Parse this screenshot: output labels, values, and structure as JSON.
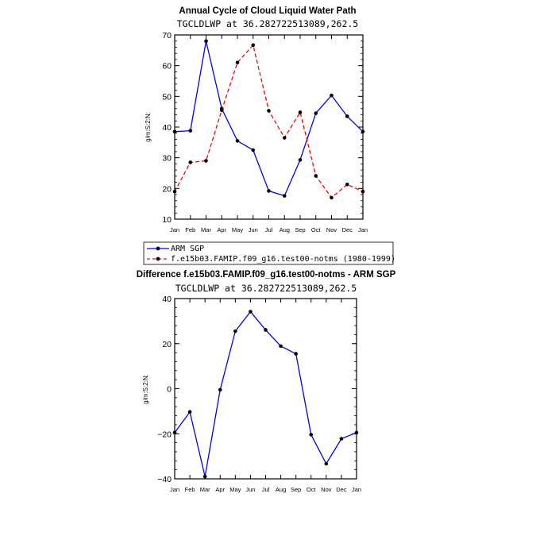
{
  "chart_data": [
    {
      "type": "line",
      "title": "Annual Cycle of Cloud Liquid Water Path",
      "subtitle": "TGCLDLWP at 36.282722513089,262.5",
      "ylabel": "g/m:S:2:N:",
      "xlabel": "",
      "categories": [
        "Jan",
        "Feb",
        "Mar",
        "Apr",
        "May",
        "Jun",
        "Jul",
        "Aug",
        "Sep",
        "Oct",
        "Nov",
        "Dec",
        "Jan"
      ],
      "ylim": [
        10,
        70
      ],
      "yticks": [
        10,
        20,
        30,
        40,
        50,
        60,
        70
      ],
      "grid": false,
      "series": [
        {
          "name": "ARM SGP",
          "color": "#0000ff",
          "dash": "solid",
          "values": [
            38.5,
            38.8,
            68,
            46,
            35.5,
            32.5,
            19.2,
            17.6,
            29.3,
            44.5,
            50.3,
            43.5,
            38.5
          ]
        },
        {
          "name": "f.e15b03.FAMIP.f09_g16.test00-notms (1980-1999)",
          "color": "#ff0000",
          "dash": "dashed",
          "values": [
            19,
            28.5,
            29,
            45.5,
            61,
            66.7,
            45.3,
            36.5,
            44.8,
            24.1,
            17,
            21.3,
            19
          ]
        }
      ],
      "legend_placement": "bottom-left"
    },
    {
      "type": "line",
      "title": "Difference f.e15b03.FAMIP.f09_g16.test00-notms - ARM SGP",
      "subtitle": "TGCLDLWP at 36.282722513089,262.5",
      "ylabel": "g/m:S:2:N:",
      "xlabel": "",
      "categories": [
        "Jan",
        "Feb",
        "Mar",
        "Apr",
        "May",
        "Jun",
        "Jul",
        "Aug",
        "Sep",
        "Oct",
        "Nov",
        "Dec",
        "Jan"
      ],
      "ylim": [
        -40,
        40
      ],
      "yticks": [
        -40,
        -20,
        0,
        20,
        40
      ],
      "ytick_labels": [
        "−40",
        "−20",
        "0",
        "20",
        "40"
      ],
      "grid": false,
      "series": [
        {
          "name": "",
          "color": "#0000ff",
          "dash": "solid",
          "values": [
            -19.5,
            -10.3,
            -39,
            -0.5,
            25.5,
            34.2,
            26.1,
            18.9,
            15.5,
            -20.4,
            -33.3,
            -22.2,
            -19.5
          ]
        }
      ]
    }
  ]
}
